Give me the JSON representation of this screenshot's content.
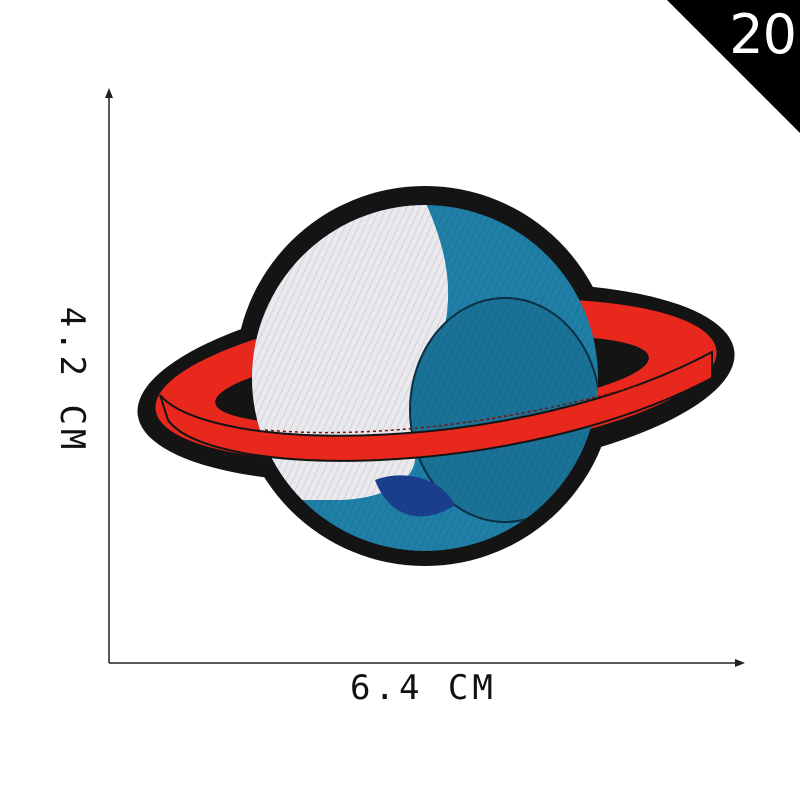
{
  "badge": {
    "number": "20",
    "background_color": "#000000",
    "text_color": "#ffffff"
  },
  "dimensions": {
    "width_label": "6.4 CM",
    "height_label": "4.2 CM"
  },
  "patch": {
    "subject": "planet-with-ring-embroidered-patch",
    "colors": {
      "border": "#111111",
      "ring": "#e8281c",
      "planet_blue": "#1f7fa6",
      "planet_white": "#e9e9ee",
      "planet_navy": "#1b3f8f"
    }
  }
}
